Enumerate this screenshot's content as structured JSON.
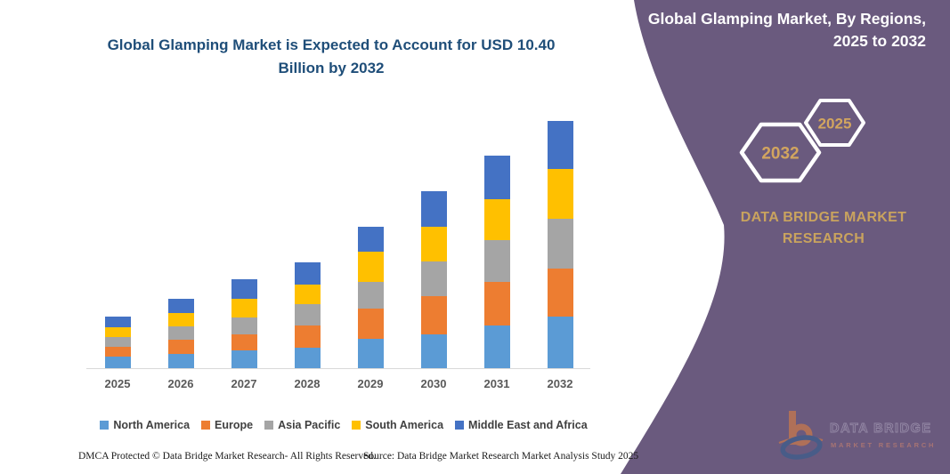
{
  "header": {
    "title_line1": "Global Glamping Market is Expected to Account for USD 10.40",
    "title_line2": "Billion by 2032"
  },
  "chart_data": {
    "type": "bar",
    "stacked": true,
    "title": "Global Glamping Market is Expected to Account for USD 10.40 Billion by 2032",
    "unit": "USD Billion",
    "xlabel": "",
    "ylabel": "",
    "ylim": [
      0,
      10.6
    ],
    "grid": false,
    "legend_position": "bottom",
    "categories": [
      "2025",
      "2026",
      "2027",
      "2028",
      "2029",
      "2030",
      "2031",
      "2032"
    ],
    "series": [
      {
        "name": "North America",
        "color": "#5B9BD5",
        "values": [
          0.47,
          0.6,
          0.75,
          0.87,
          1.25,
          1.43,
          1.81,
          2.16
        ]
      },
      {
        "name": "Europe",
        "color": "#ED7D31",
        "values": [
          0.44,
          0.6,
          0.69,
          0.94,
          1.25,
          1.62,
          1.81,
          2.05
        ]
      },
      {
        "name": "Asia Pacific",
        "color": "#A5A5A5",
        "values": [
          0.4,
          0.56,
          0.69,
          0.87,
          1.15,
          1.46,
          1.75,
          2.07
        ]
      },
      {
        "name": "South America",
        "color": "#FFC000",
        "values": [
          0.41,
          0.58,
          0.81,
          0.84,
          1.25,
          1.43,
          1.75,
          2.09
        ]
      },
      {
        "name": "Middle East and Africa",
        "color": "#4472C4",
        "values": [
          0.46,
          0.58,
          0.81,
          0.94,
          1.06,
          1.5,
          1.81,
          2.03
        ]
      }
    ],
    "totals": [
      2.18,
      2.92,
      3.75,
      4.46,
      5.96,
      7.44,
      8.93,
      10.4
    ]
  },
  "panel": {
    "bg_color": "#6A5A7E",
    "accent_color": "#C9A35E",
    "title_line1": "Global Glamping Market, By Regions,",
    "title_line2": "2025 to 2032",
    "hexagon_left_year": "2032",
    "hexagon_right_year": "2025",
    "brand_line1": "DATA BRIDGE MARKET",
    "brand_line2": "RESEARCH",
    "logo_name": "DATA BRIDGE",
    "logo_sub": "MARKET RESEARCH"
  },
  "footer": {
    "left": "DMCA Protected © Data Bridge Market Research-  All Rights Reserved.",
    "source": "Source: Data Bridge Market Research  Market Analysis Study 2025"
  }
}
